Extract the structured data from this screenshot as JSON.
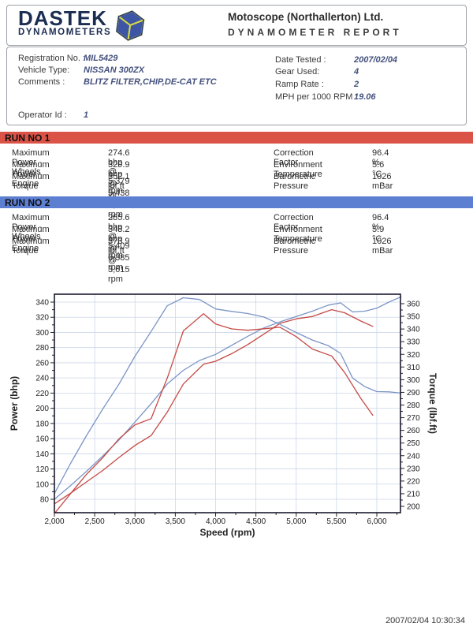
{
  "header": {
    "logo_title": "DASTEK",
    "logo_subtitle": "DYNAMOMETERS",
    "company": "Motoscope (Northallerton) Ltd.",
    "report_title": "DYNAMOMETER REPORT",
    "logo_color": "#1c2d52",
    "cube_blue": "#3c55a5",
    "cube_yellow": "#d9d943"
  },
  "info": {
    "left": [
      {
        "label": "Registration No. :",
        "value": "MIL5429"
      },
      {
        "label": "Vehicle Type:",
        "value": "NISSAN 300ZX"
      },
      {
        "label": "Comments :",
        "value": "BLITZ FILTER,CHIP,DE-CAT ETC"
      }
    ],
    "operator": {
      "label": "Operator Id :",
      "value": "1"
    },
    "right": [
      {
        "label": "Date Tested :",
        "value": "2007/02/04"
      },
      {
        "label": "Gear Used:",
        "value": "4"
      },
      {
        "label": "Ramp Rate :",
        "value": "2"
      },
      {
        "label": "MPH per 1000 RPM :",
        "value": "19.06"
      }
    ]
  },
  "runs": [
    {
      "title": "RUN NO 1",
      "banner_color": "#db5347",
      "stats": [
        {
          "label": "Maximum Power - Wheels",
          "value": "274.6 bhp @ 5,379 rpm"
        },
        {
          "label": "Maximum Power - Engine",
          "value": "329.9 bhp @ 5,438 rpm"
        },
        {
          "label": "Maximum Torque",
          "value": "352.1 lbf.ft @ 3,848 rpm"
        }
      ],
      "env": [
        {
          "label": "Correction Factor",
          "value": "96.4 %"
        },
        {
          "label": "Environment Temperature",
          "value": "5.6 °C"
        },
        {
          "label": "Barometric Pressure",
          "value": "1026 mBar"
        }
      ]
    },
    {
      "title": "RUN NO 2",
      "banner_color": "#5c7fd2",
      "stats": [
        {
          "label": "Maximum Power - Wheels",
          "value": "285.6 bhp @ 5,409 rpm"
        },
        {
          "label": "Maximum Power - Engine",
          "value": "348.2 bhp @ 6,385 rpm"
        },
        {
          "label": "Maximum Torque",
          "value": "373.9 lbf.ft @ 3,615 rpm"
        }
      ],
      "env": [
        {
          "label": "Correction Factor",
          "value": "96.4 %"
        },
        {
          "label": "Environment Temperature",
          "value": "5.9 °C"
        },
        {
          "label": "Barometric Pressure",
          "value": "1026 mBar"
        }
      ]
    }
  ],
  "chart_data": {
    "type": "line",
    "xlabel": "Speed (rpm)",
    "x_range": [
      2000,
      6300
    ],
    "grid": true,
    "x_ticks": {
      "values": [
        2000,
        2500,
        3000,
        3500,
        4000,
        4500,
        5000,
        5500,
        6000
      ],
      "labels": [
        "2,000",
        "2,500",
        "3,000",
        "3,500",
        "4,000",
        "4,500",
        "5,000",
        "5,500",
        "6,000"
      ],
      "minor_step": 250
    },
    "left_axis": {
      "label": "Power (bhp)",
      "ticks": [
        340,
        320,
        300,
        280,
        260,
        240,
        220,
        200,
        180,
        160,
        140,
        120,
        100,
        80
      ],
      "minor_step": 10
    },
    "right_axis": {
      "label": "Torque (lbf.ft)",
      "ticks": [
        360,
        350,
        340,
        330,
        320,
        310,
        300,
        290,
        280,
        270,
        260,
        250,
        240,
        230,
        220,
        210,
        200
      ],
      "minor_step": 5
    },
    "series": [
      {
        "name": "Run 1 Power (bhp)",
        "color": "#c64a45",
        "axis": "left",
        "x": [
          2000,
          2200,
          2400,
          2600,
          2800,
          3000,
          3200,
          3400,
          3600,
          3850,
          4000,
          4200,
          4400,
          4600,
          4800,
          5000,
          5200,
          5440,
          5600,
          5800,
          5950
        ],
        "y": [
          74,
          88,
          103,
          118,
          135,
          151,
          164,
          195,
          232,
          258,
          262,
          272,
          284,
          298,
          312,
          318,
          321,
          330,
          326,
          315,
          308
        ]
      },
      {
        "name": "Run 2 Power (bhp)",
        "color": "#7b94c5",
        "axis": "left",
        "x": [
          2000,
          2200,
          2400,
          2600,
          2800,
          3000,
          3200,
          3400,
          3600,
          3800,
          4000,
          4200,
          4400,
          4600,
          4800,
          5000,
          5200,
          5400,
          5550,
          5700,
          5850,
          6000,
          6150,
          6300
        ],
        "y": [
          80,
          98,
          117,
          137,
          158,
          182,
          206,
          232,
          250,
          263,
          271,
          283,
          295,
          306,
          314,
          321,
          328,
          336,
          339,
          327,
          328,
          332,
          340,
          347
        ]
      },
      {
        "name": "Run 1 Torque (lbf.ft)",
        "color": "#c64a45",
        "axis": "right",
        "x": [
          2000,
          2200,
          2400,
          2600,
          2800,
          3000,
          3200,
          3400,
          3600,
          3850,
          4000,
          4200,
          4400,
          4600,
          4800,
          5000,
          5200,
          5440,
          5600,
          5800,
          5950
        ],
        "y": [
          194.3,
          210.1,
          225.4,
          238.4,
          253.2,
          264.4,
          269.2,
          301.3,
          338.5,
          352.1,
          344.0,
          340.1,
          339.0,
          340.2,
          341.4,
          334.0,
          324.2,
          318.7,
          305.7,
          285.3,
          271.9
        ]
      },
      {
        "name": "Run 2 Torque (lbf.ft)",
        "color": "#7b94c5",
        "axis": "right",
        "x": [
          2000,
          2200,
          2400,
          2600,
          2800,
          3000,
          3200,
          3400,
          3600,
          3800,
          4000,
          4200,
          4400,
          4600,
          4800,
          5000,
          5200,
          5400,
          5550,
          5700,
          5850,
          6000,
          6150,
          6300
        ],
        "y": [
          210.1,
          233.9,
          256.0,
          276.8,
          296.4,
          318.6,
          338.1,
          358.4,
          364.7,
          363.3,
          355.8,
          353.9,
          352.2,
          349.4,
          343.6,
          337.2,
          331.3,
          326.8,
          320.8,
          301.3,
          294.5,
          290.6,
          290.4,
          289.4
        ]
      }
    ]
  },
  "footer": {
    "timestamp": "2007/02/04 10:30:34"
  }
}
